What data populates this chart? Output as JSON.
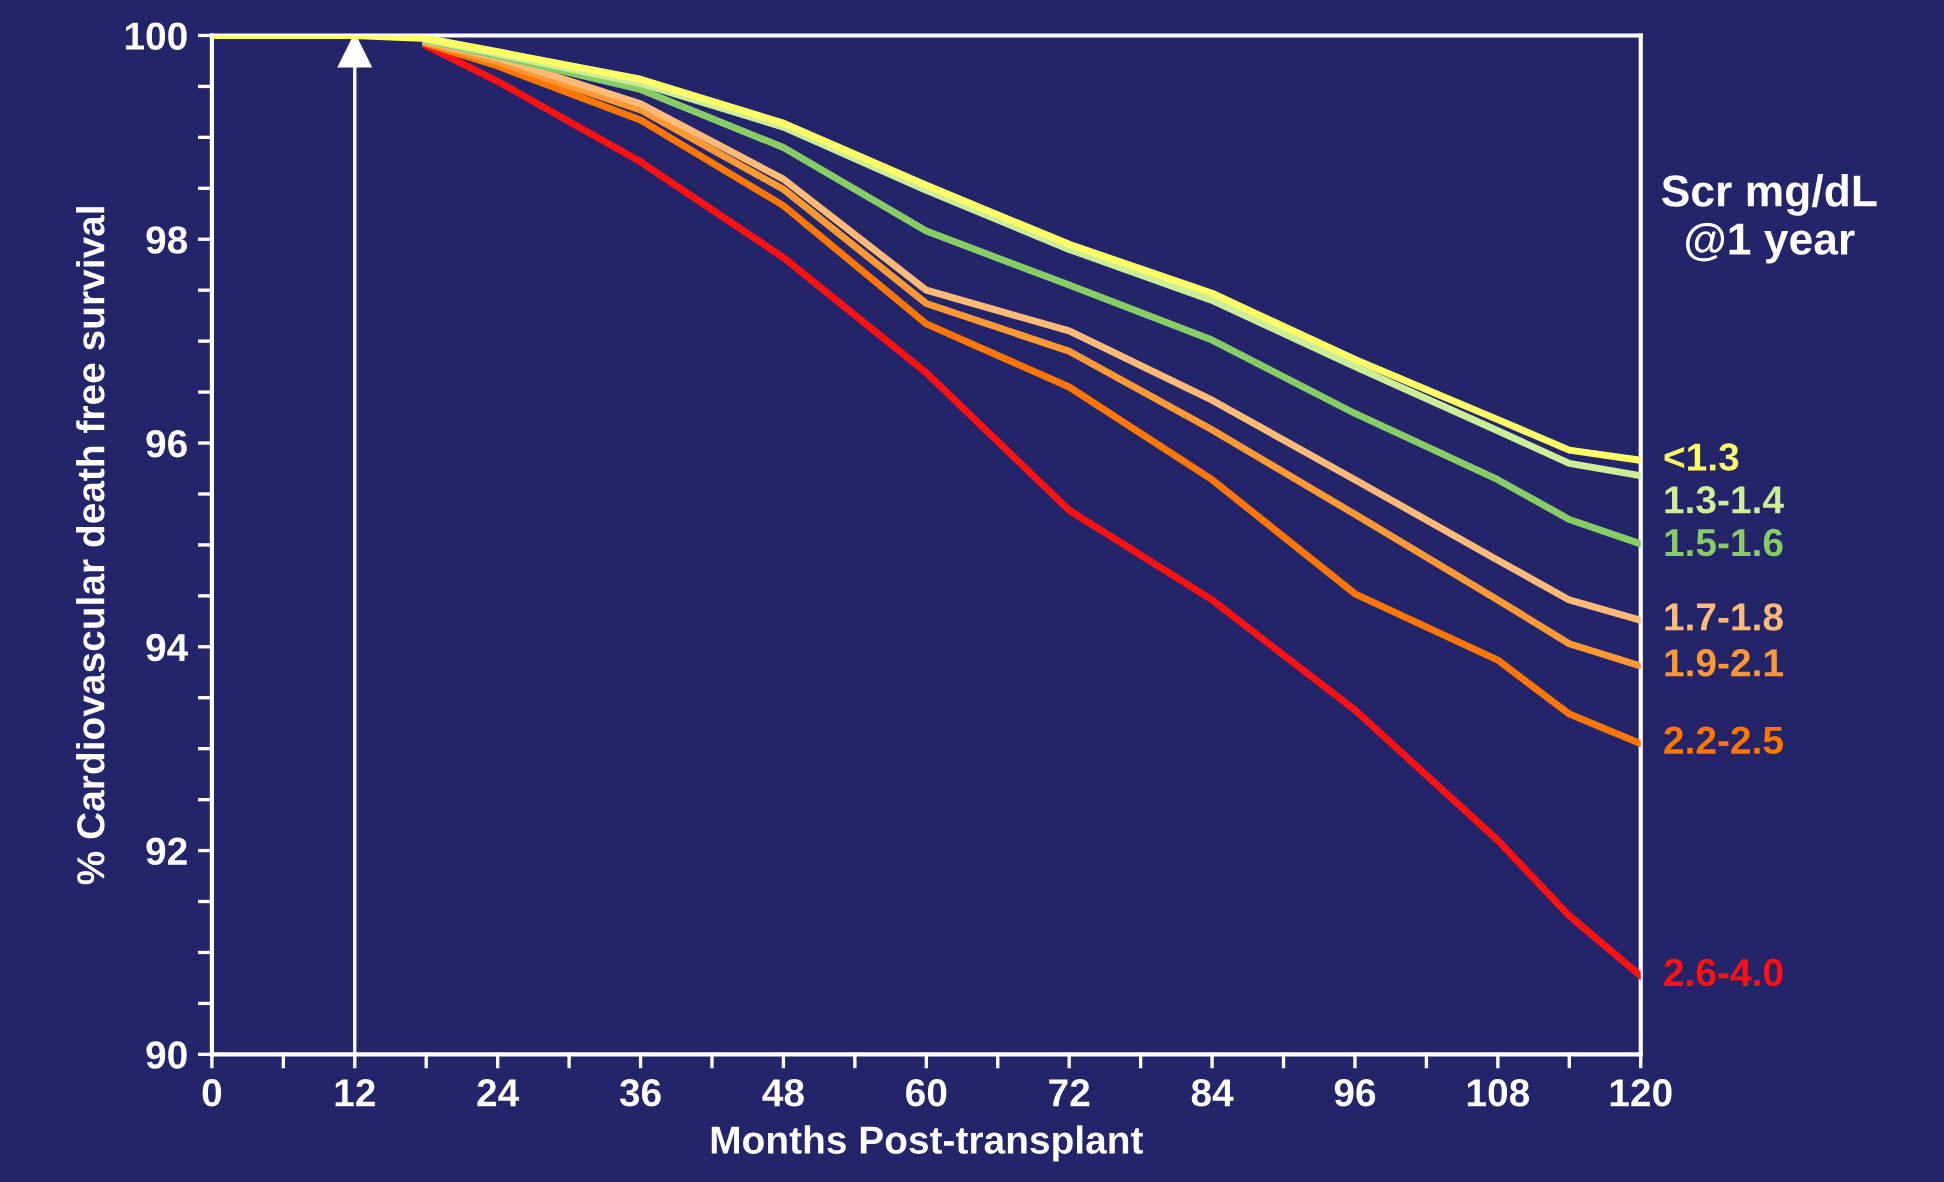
{
  "chart_data": {
    "type": "line",
    "xlabel": "Months Post-transplant",
    "ylabel": "% Cardiovascular death free survival",
    "legend_title": "Scr mg/dL\n@1 year",
    "legend": "right",
    "grid": false,
    "line_style": "solid",
    "x": [
      0,
      12,
      18,
      24,
      36,
      48,
      60,
      72,
      84,
      96,
      108,
      114,
      120
    ],
    "xlim": [
      0,
      120
    ],
    "ylim": [
      90,
      100
    ],
    "xticks": [
      0,
      {
        "value": 6,
        "label": null
      },
      12,
      {
        "value": 18,
        "label": null
      },
      24,
      {
        "value": 30,
        "label": null
      },
      36,
      {
        "value": 42,
        "label": null
      },
      48,
      {
        "value": 54,
        "label": null
      },
      60,
      {
        "value": 66,
        "label": null
      },
      72,
      {
        "value": 78,
        "label": null
      },
      84,
      {
        "value": 90,
        "label": null
      },
      96,
      {
        "value": 102,
        "label": null
      },
      108,
      {
        "value": 114,
        "label": null
      },
      120
    ],
    "yticks": [
      90,
      {
        "value": 90.5,
        "label": null
      },
      {
        "value": 91,
        "label": null
      },
      {
        "value": 91.5,
        "label": null
      },
      92,
      {
        "value": 92.5,
        "label": null
      },
      {
        "value": 93,
        "label": null
      },
      {
        "value": 93.5,
        "label": null
      },
      94,
      {
        "value": 94.5,
        "label": null
      },
      {
        "value": 95,
        "label": null
      },
      {
        "value": 95.5,
        "label": null
      },
      96,
      {
        "value": 96.5,
        "label": null
      },
      {
        "value": 97,
        "label": null
      },
      {
        "value": 97.5,
        "label": null
      },
      98,
      {
        "value": 98.5,
        "label": null
      },
      {
        "value": 99,
        "label": null
      },
      {
        "value": 99.5,
        "label": null
      },
      100
    ],
    "ref_lines": [
      {
        "axis": "x",
        "value": 12,
        "color": "#ffffff"
      }
    ],
    "series": [
      {
        "name": "<1.3",
        "color": "#ffff66",
        "values": [
          100,
          100,
          99.97,
          99.84,
          99.57,
          99.14,
          98.53,
          97.95,
          97.47,
          96.82,
          96.23,
          95.93,
          95.83
        ]
      },
      {
        "name": "1.3-1.4",
        "color": "#ccee99",
        "values": [
          null,
          null,
          99.96,
          99.82,
          99.53,
          99.1,
          98.48,
          97.9,
          97.4,
          96.75,
          96.12,
          95.8,
          95.68
        ]
      },
      {
        "name": "1.5-1.6",
        "color": "#88cc66",
        "values": [
          null,
          null,
          99.95,
          99.8,
          99.47,
          98.9,
          98.08,
          97.55,
          97.01,
          96.29,
          95.64,
          95.25,
          95.01
        ]
      },
      {
        "name": "1.7-1.8",
        "color": "#ffbb77",
        "values": [
          null,
          null,
          99.94,
          99.78,
          99.33,
          98.59,
          97.5,
          97.1,
          96.42,
          95.64,
          94.85,
          94.46,
          94.26
        ]
      },
      {
        "name": "1.9-2.1",
        "color": "#ff9933",
        "values": [
          null,
          null,
          99.93,
          99.74,
          99.27,
          98.49,
          97.37,
          96.9,
          96.13,
          95.3,
          94.46,
          94.03,
          93.81
        ]
      },
      {
        "name": "2.2-2.5",
        "color": "#ff7700",
        "values": [
          null,
          null,
          99.92,
          99.7,
          99.17,
          98.33,
          97.17,
          96.55,
          95.64,
          94.52,
          93.87,
          93.34,
          93.05
        ]
      },
      {
        "name": "2.6-4.0",
        "color": "#ff1111",
        "values": [
          null,
          null,
          99.9,
          99.55,
          98.76,
          97.82,
          96.69,
          95.34,
          94.46,
          93.38,
          92.1,
          91.36,
          90.77
        ]
      }
    ]
  }
}
